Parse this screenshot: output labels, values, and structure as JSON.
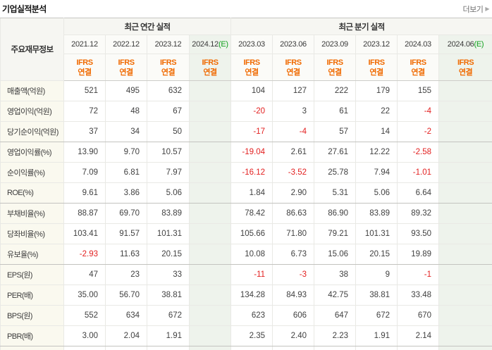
{
  "page": {
    "title": "기업실적분석",
    "more_label": "더보기"
  },
  "colors": {
    "accent_orange": "#f06a00",
    "estimate_green": "#11a11e",
    "negative_red": "#e32020",
    "estimate_column_bg": "#eef3ec",
    "row_label_bg": "#faf9ef",
    "header_bg": "#f6f6f2"
  },
  "table": {
    "corner_label": "주요재무정보",
    "groups": [
      {
        "label": "최근 연간 실적",
        "span": 4
      },
      {
        "label": "최근 분기 실적",
        "span": 6
      }
    ],
    "ifrs_label": {
      "line1": "IFRS",
      "line2": "연결"
    },
    "columns": [
      {
        "label": "2021.12",
        "estimate": false
      },
      {
        "label": "2022.12",
        "estimate": false
      },
      {
        "label": "2023.12",
        "estimate": false
      },
      {
        "label": "2024.12",
        "e": "(E)",
        "estimate": true
      },
      {
        "label": "2023.03",
        "estimate": false
      },
      {
        "label": "2023.06",
        "estimate": false
      },
      {
        "label": "2023.09",
        "estimate": false
      },
      {
        "label": "2023.12",
        "estimate": false
      },
      {
        "label": "2024.03",
        "estimate": false
      },
      {
        "label": "2024.06",
        "e": "(E)",
        "estimate": true
      }
    ],
    "rows": [
      {
        "label": "매출액(억원)",
        "group_end": false,
        "values": [
          "521",
          "495",
          "632",
          "",
          "104",
          "127",
          "222",
          "179",
          "155",
          ""
        ]
      },
      {
        "label": "영업이익(억원)",
        "group_end": false,
        "values": [
          "72",
          "48",
          "67",
          "",
          "-20",
          "3",
          "61",
          "22",
          "-4",
          ""
        ]
      },
      {
        "label": "당기순이익(억원)",
        "group_end": true,
        "values": [
          "37",
          "34",
          "50",
          "",
          "-17",
          "-4",
          "57",
          "14",
          "-2",
          ""
        ]
      },
      {
        "label": "영업이익률(%)",
        "group_end": false,
        "values": [
          "13.90",
          "9.70",
          "10.57",
          "",
          "-19.04",
          "2.61",
          "27.61",
          "12.22",
          "-2.58",
          ""
        ]
      },
      {
        "label": "순이익률(%)",
        "group_end": false,
        "values": [
          "7.09",
          "6.81",
          "7.97",
          "",
          "-16.12",
          "-3.52",
          "25.78",
          "7.94",
          "-1.01",
          ""
        ]
      },
      {
        "label": "ROE(%)",
        "group_end": true,
        "values": [
          "9.61",
          "3.86",
          "5.06",
          "",
          "1.84",
          "2.90",
          "5.31",
          "5.06",
          "6.64",
          ""
        ]
      },
      {
        "label": "부채비율(%)",
        "group_end": false,
        "values": [
          "88.87",
          "69.70",
          "83.89",
          "",
          "78.42",
          "86.63",
          "86.90",
          "83.89",
          "89.32",
          ""
        ]
      },
      {
        "label": "당좌비율(%)",
        "group_end": false,
        "values": [
          "103.41",
          "91.57",
          "101.31",
          "",
          "105.66",
          "71.80",
          "79.21",
          "101.31",
          "93.50",
          ""
        ]
      },
      {
        "label": "유보율(%)",
        "group_end": true,
        "values": [
          "-2.93",
          "11.63",
          "20.15",
          "",
          "10.08",
          "6.73",
          "15.06",
          "20.15",
          "19.89",
          ""
        ]
      },
      {
        "label": "EPS(원)",
        "group_end": false,
        "values": [
          "47",
          "23",
          "33",
          "",
          "-11",
          "-3",
          "38",
          "9",
          "-1",
          ""
        ]
      },
      {
        "label": "PER(배)",
        "group_end": false,
        "values": [
          "35.00",
          "56.70",
          "38.81",
          "",
          "134.28",
          "84.93",
          "42.75",
          "38.81",
          "33.48",
          ""
        ]
      },
      {
        "label": "BPS(원)",
        "group_end": false,
        "values": [
          "552",
          "634",
          "672",
          "",
          "623",
          "606",
          "647",
          "672",
          "670",
          ""
        ]
      },
      {
        "label": "PBR(배)",
        "group_end": true,
        "values": [
          "3.00",
          "2.04",
          "1.91",
          "",
          "2.35",
          "2.40",
          "2.23",
          "1.91",
          "2.14",
          ""
        ]
      }
    ]
  }
}
